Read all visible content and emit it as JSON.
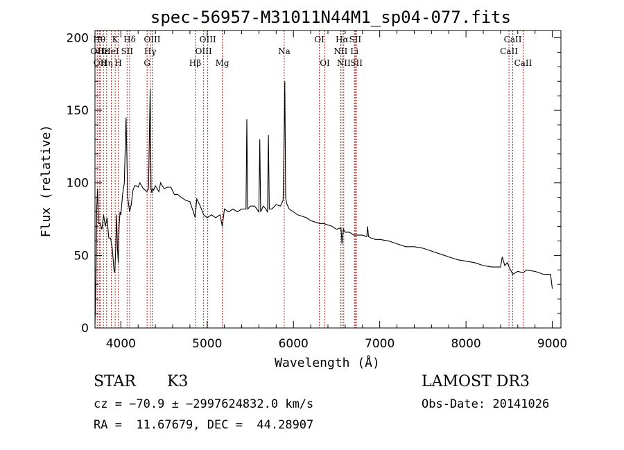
{
  "chart_data": {
    "type": "line",
    "title": "spec-56957-M31011N44M1_sp04-077.fits",
    "xlabel": "Wavelength (Å)",
    "ylabel": "Flux (relative)",
    "xlim": [
      3700,
      9100
    ],
    "ylim": [
      0,
      205
    ],
    "xticks": [
      4000,
      5000,
      6000,
      7000,
      8000,
      9000
    ],
    "yticks": [
      0,
      50,
      100,
      150,
      200
    ],
    "grid": false,
    "series": [
      {
        "name": "",
        "x": [
          3700,
          3710,
          3720,
          3730,
          3740,
          3760,
          3780,
          3800,
          3820,
          3840,
          3860,
          3880,
          3900,
          3920,
          3930,
          3940,
          3950,
          3960,
          3970,
          3980,
          3990,
          4000,
          4020,
          4040,
          4060,
          4080,
          4101,
          4120,
          4140,
          4160,
          4180,
          4200,
          4220,
          4240,
          4260,
          4280,
          4300,
          4320,
          4340,
          4350,
          4360,
          4370,
          4380,
          4400,
          4420,
          4440,
          4460,
          4480,
          4500,
          4540,
          4580,
          4620,
          4660,
          4700,
          4750,
          4800,
          4840,
          4861,
          4880,
          4920,
          4960,
          5000,
          5050,
          5100,
          5150,
          5175,
          5200,
          5250,
          5300,
          5350,
          5400,
          5450,
          5460,
          5470,
          5500,
          5550,
          5600,
          5610,
          5620,
          5650,
          5680,
          5700,
          5710,
          5720,
          5750,
          5800,
          5850,
          5880,
          5890,
          5900,
          5910,
          5920,
          5950,
          6000,
          6050,
          6100,
          6150,
          6200,
          6250,
          6300,
          6350,
          6400,
          6450,
          6500,
          6550,
          6563,
          6580,
          6600,
          6650,
          6700,
          6750,
          6800,
          6850,
          6860,
          6870,
          6900,
          6950,
          7000,
          7100,
          7200,
          7300,
          7400,
          7500,
          7600,
          7700,
          7800,
          7900,
          8000,
          8100,
          8200,
          8300,
          8400,
          8420,
          8450,
          8480,
          8500,
          8542,
          8600,
          8662,
          8700,
          8800,
          8900,
          8980,
          9000
        ],
        "values": [
          2,
          32,
          82,
          96,
          72,
          72,
          68,
          78,
          70,
          76,
          62,
          62,
          55,
          40,
          38,
          55,
          78,
          55,
          45,
          70,
          80,
          78,
          92,
          100,
          145,
          90,
          80,
          85,
          95,
          98,
          98,
          97,
          100,
          98,
          96,
          95,
          94,
          96,
          165,
          96,
          93,
          96,
          95,
          98,
          96,
          94,
          100,
          98,
          96,
          97,
          97,
          92,
          92,
          90,
          88,
          87,
          80,
          76,
          89,
          84,
          78,
          76,
          78,
          76,
          78,
          70,
          82,
          80,
          82,
          80,
          82,
          82,
          144,
          82,
          84,
          84,
          80,
          130,
          80,
          84,
          82,
          80,
          133,
          82,
          82,
          85,
          84,
          88,
          120,
          170,
          90,
          86,
          82,
          80,
          78,
          77,
          76,
          74,
          73,
          72,
          72,
          71,
          70,
          68,
          69,
          58,
          68,
          66,
          66,
          64,
          64,
          64,
          63,
          70,
          63,
          62,
          61,
          61,
          60,
          58,
          56,
          56,
          55,
          53,
          51,
          49,
          47,
          46,
          45,
          43,
          42,
          42,
          49,
          43,
          45,
          42,
          37,
          39,
          38,
          40,
          39,
          37,
          37,
          27
        ]
      }
    ],
    "lines": [
      {
        "wl": 3726,
        "label": "OII",
        "row": 2
      },
      {
        "wl": 3750,
        "label": "Hθ",
        "row": 1
      },
      {
        "wl": 3760,
        "label": "OII",
        "row": 3
      },
      {
        "wl": 3798,
        "label": "Hε",
        "row": 2
      },
      {
        "wl": 3835,
        "label": "Hη",
        "row": 3
      },
      {
        "wl": 3889,
        "label": "HeI",
        "row": 2
      },
      {
        "wl": 3934,
        "label": "K",
        "row": 1
      },
      {
        "wl": 3970,
        "label": "H",
        "row": 3
      },
      {
        "wl": 4072,
        "label": "SII",
        "row": 2
      },
      {
        "wl": 4102,
        "label": "Hδ",
        "row": 1
      },
      {
        "wl": 4304,
        "label": "G",
        "row": 3
      },
      {
        "wl": 4340,
        "label": "Hγ",
        "row": 2
      },
      {
        "wl": 4363,
        "label": "OIII",
        "row": 1
      },
      {
        "wl": 4861,
        "label": "Hβ",
        "row": 3
      },
      {
        "wl": 4959,
        "label": "OIII",
        "row": 2
      },
      {
        "wl": 5007,
        "label": "OIII",
        "row": 1
      },
      {
        "wl": 5175,
        "label": "Mg",
        "row": 3
      },
      {
        "wl": 5893,
        "label": "Na",
        "row": 2
      },
      {
        "wl": 6300,
        "label": "OI",
        "row": 1
      },
      {
        "wl": 6364,
        "label": "OI",
        "row": 3
      },
      {
        "wl": 6548,
        "label": "NII",
        "row": 2
      },
      {
        "wl": 6563,
        "label": "Hα",
        "row": 1
      },
      {
        "wl": 6583,
        "label": "NII",
        "row": 3
      },
      {
        "wl": 6707,
        "label": "Li",
        "row": 2
      },
      {
        "wl": 6716,
        "label": "SII",
        "row": 1
      },
      {
        "wl": 6731,
        "label": "SII",
        "row": 3
      },
      {
        "wl": 8498,
        "label": "CaII",
        "row": 2
      },
      {
        "wl": 8542,
        "label": "CaII",
        "row": 1
      },
      {
        "wl": 8662,
        "label": "CaII",
        "row": 3
      }
    ]
  },
  "info": {
    "class": "STAR",
    "subclass": "K3",
    "survey": "LAMOST DR3",
    "cz": "cz = −70.9 ± −2997624832.0 km/s",
    "obs_date": "Obs-Date: 20141026",
    "radec": "RA =  11.67679, DEC =  44.28907"
  },
  "colors": {
    "line_marker": "#b22222",
    "spectrum": "#000000",
    "axes": "#000000"
  }
}
